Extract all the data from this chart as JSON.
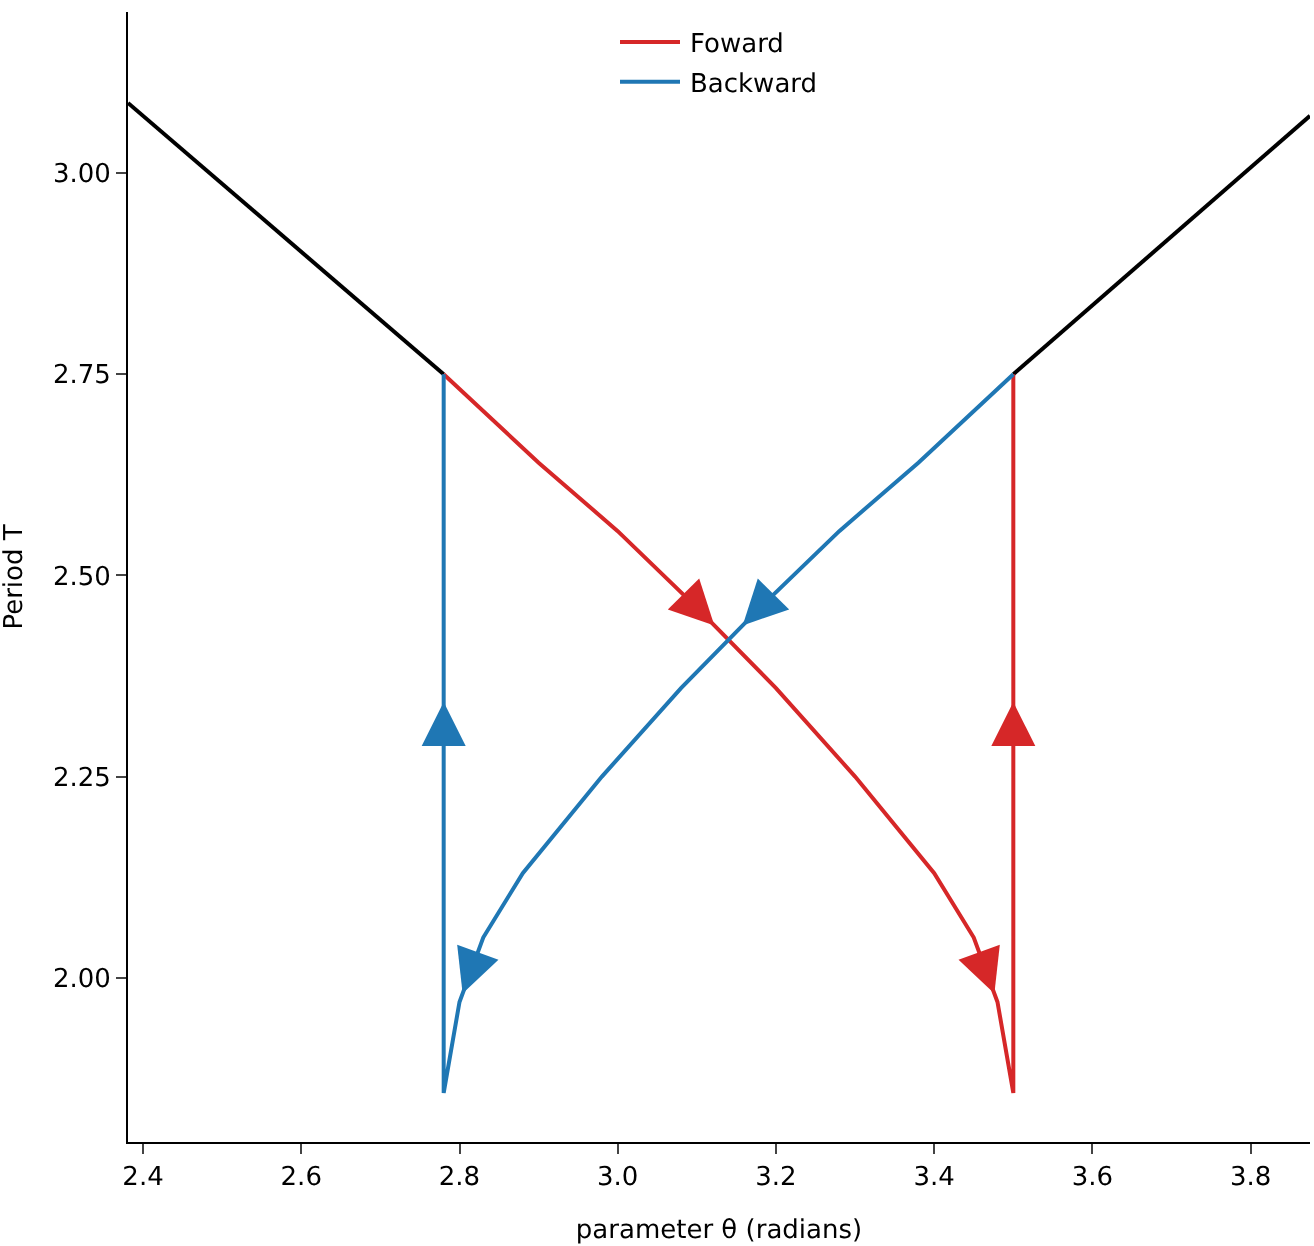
{
  "chart_data": {
    "type": "line",
    "xlabel": "parameter θ (radians)",
    "ylabel": "Period T",
    "xlim": [
      2.381,
      3.875
    ],
    "ylim": [
      1.796,
      3.2
    ],
    "xticks": [
      2.4,
      2.6,
      2.8,
      {
        "value": 3.0,
        "label": "3.0"
      },
      3.2,
      3.4,
      3.6,
      3.8
    ],
    "yticks": [
      {
        "value": 2.0,
        "label": "2.00"
      },
      {
        "value": 2.25,
        "label": "2.25"
      },
      {
        "value": 2.5,
        "label": "2.50"
      },
      {
        "value": 2.75,
        "label": "2.75"
      },
      {
        "value": 3.0,
        "label": "3.00"
      }
    ],
    "grid": false,
    "legend": "top",
    "marker": "none",
    "line_style": "solid",
    "series": [
      {
        "color": "#000000",
        "x": [
          2.381,
          2.78,
          null,
          3.5,
          3.875
        ],
        "values": [
          3.087,
          2.75,
          null,
          2.75,
          3.071
        ]
      },
      {
        "name": "Foward",
        "color": "#d62728",
        "x": [
          2.78,
          2.9,
          3.0,
          3.1,
          3.2,
          3.3,
          3.4,
          3.45,
          3.48,
          3.5,
          3.5
        ],
        "values": [
          2.75,
          2.64,
          2.555,
          2.46,
          2.36,
          2.25,
          2.13,
          2.05,
          1.97,
          1.857,
          2.75
        ]
      },
      {
        "name": "Backward",
        "color": "#1f77b4",
        "x": [
          3.5,
          3.38,
          3.28,
          3.18,
          3.08,
          2.98,
          2.88,
          2.83,
          2.8,
          2.78,
          2.78
        ],
        "values": [
          2.75,
          2.64,
          2.555,
          2.46,
          2.36,
          2.25,
          2.13,
          2.05,
          1.97,
          1.857,
          2.75
        ]
      }
    ]
  }
}
